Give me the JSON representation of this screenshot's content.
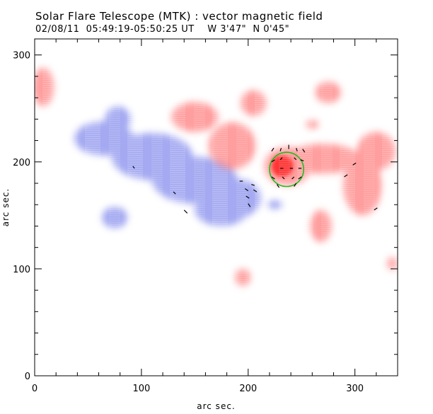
{
  "header": {
    "title": "Solar Flare Telescope (MTK) : vector magnetic field",
    "subtitle": "02/08/11  05:49:19-05:50:25 UT    W 3'47\"  N 0'45\""
  },
  "chart_data": {
    "type": "heatmap",
    "title": "Solar Flare Telescope (MTK) : vector magnetic field",
    "subtitle": "02/08/11  05:49:19-05:50:25 UT    W 3'47\"  N 0'45\"",
    "xlabel": "arc sec.",
    "ylabel": "arc sec.",
    "xlim": [
      0,
      340
    ],
    "ylim": [
      0,
      315
    ],
    "x_ticks": [
      0,
      100,
      200,
      300
    ],
    "y_ticks": [
      0,
      100,
      200,
      300
    ],
    "colors": {
      "positive": "#ff5050",
      "negative": "#5a64e6",
      "vector": "#000000",
      "circle": "#22bb22"
    },
    "negative_regions": [
      {
        "cx": 65,
        "cy": 222,
        "rx": 28,
        "ry": 16
      },
      {
        "cx": 78,
        "cy": 240,
        "rx": 12,
        "ry": 12
      },
      {
        "cx": 110,
        "cy": 205,
        "rx": 38,
        "ry": 22
      },
      {
        "cx": 150,
        "cy": 183,
        "rx": 40,
        "ry": 22
      },
      {
        "cx": 190,
        "cy": 166,
        "rx": 22,
        "ry": 18
      },
      {
        "cx": 175,
        "cy": 155,
        "rx": 25,
        "ry": 15
      },
      {
        "cx": 75,
        "cy": 148,
        "rx": 12,
        "ry": 10
      },
      {
        "cx": 225,
        "cy": 160,
        "rx": 7,
        "ry": 4
      }
    ],
    "positive_regions": [
      {
        "cx": 8,
        "cy": 270,
        "rx": 10,
        "ry": 18
      },
      {
        "cx": 150,
        "cy": 242,
        "rx": 22,
        "ry": 14
      },
      {
        "cx": 185,
        "cy": 215,
        "rx": 22,
        "ry": 22
      },
      {
        "cx": 205,
        "cy": 255,
        "rx": 12,
        "ry": 12
      },
      {
        "cx": 237,
        "cy": 196,
        "rx": 22,
        "ry": 18
      },
      {
        "cx": 270,
        "cy": 203,
        "rx": 35,
        "ry": 14
      },
      {
        "cx": 307,
        "cy": 178,
        "rx": 18,
        "ry": 28
      },
      {
        "cx": 320,
        "cy": 210,
        "rx": 18,
        "ry": 18
      },
      {
        "cx": 275,
        "cy": 265,
        "rx": 12,
        "ry": 10
      },
      {
        "cx": 268,
        "cy": 140,
        "rx": 10,
        "ry": 15
      },
      {
        "cx": 195,
        "cy": 92,
        "rx": 7,
        "ry": 8
      },
      {
        "cx": 260,
        "cy": 235,
        "rx": 6,
        "ry": 4
      },
      {
        "cx": 335,
        "cy": 105,
        "rx": 5,
        "ry": 6
      }
    ],
    "strong_positive": [
      {
        "cx": 232,
        "cy": 196,
        "rx": 10,
        "ry": 10
      }
    ],
    "circle": {
      "cx": 236,
      "cy": 193,
      "r": 16
    },
    "vectors": [
      {
        "x": 92,
        "y": 196,
        "dx": 1.5,
        "dy": -2
      },
      {
        "x": 130,
        "y": 172,
        "dx": 2,
        "dy": -2
      },
      {
        "x": 140,
        "y": 155,
        "dx": 3,
        "dy": -3
      },
      {
        "x": 192,
        "y": 182,
        "dx": 3,
        "dy": 0
      },
      {
        "x": 197,
        "y": 175,
        "dx": 3,
        "dy": -2
      },
      {
        "x": 198,
        "y": 168,
        "dx": 3,
        "dy": -2
      },
      {
        "x": 200,
        "y": 161,
        "dx": 2,
        "dy": -3
      },
      {
        "x": 203,
        "y": 179,
        "dx": 3,
        "dy": -1
      },
      {
        "x": 205,
        "y": 174,
        "dx": 3,
        "dy": -2
      },
      {
        "x": 222,
        "y": 210,
        "dx": 2,
        "dy": 3
      },
      {
        "x": 230,
        "y": 210,
        "dx": 1,
        "dy": 3
      },
      {
        "x": 238,
        "y": 212,
        "dx": 0,
        "dy": 4
      },
      {
        "x": 246,
        "y": 210,
        "dx": -1,
        "dy": 3
      },
      {
        "x": 253,
        "y": 209,
        "dx": -2,
        "dy": 3
      },
      {
        "x": 222,
        "y": 200,
        "dx": 3,
        "dy": 2
      },
      {
        "x": 230,
        "y": 202,
        "dx": 2,
        "dy": 2
      },
      {
        "x": 245,
        "y": 202,
        "dx": -2,
        "dy": 2
      },
      {
        "x": 252,
        "y": 201,
        "dx": -3,
        "dy": 1
      },
      {
        "x": 230,
        "y": 194,
        "dx": 3,
        "dy": 0
      },
      {
        "x": 242,
        "y": 194,
        "dx": -3,
        "dy": 0
      },
      {
        "x": 250,
        "y": 194,
        "dx": -3,
        "dy": 0
      },
      {
        "x": 222,
        "y": 186,
        "dx": 3,
        "dy": -2
      },
      {
        "x": 232,
        "y": 186,
        "dx": 2,
        "dy": -2
      },
      {
        "x": 243,
        "y": 186,
        "dx": -2,
        "dy": -2
      },
      {
        "x": 250,
        "y": 186,
        "dx": -3,
        "dy": -2
      },
      {
        "x": 227,
        "y": 179,
        "dx": 2,
        "dy": -3
      },
      {
        "x": 245,
        "y": 180,
        "dx": -2,
        "dy": -3
      },
      {
        "x": 290,
        "y": 186,
        "dx": 3,
        "dy": 2
      },
      {
        "x": 298,
        "y": 197,
        "dx": 3,
        "dy": 2
      },
      {
        "x": 318,
        "y": 155,
        "dx": 3,
        "dy": 2
      }
    ]
  }
}
